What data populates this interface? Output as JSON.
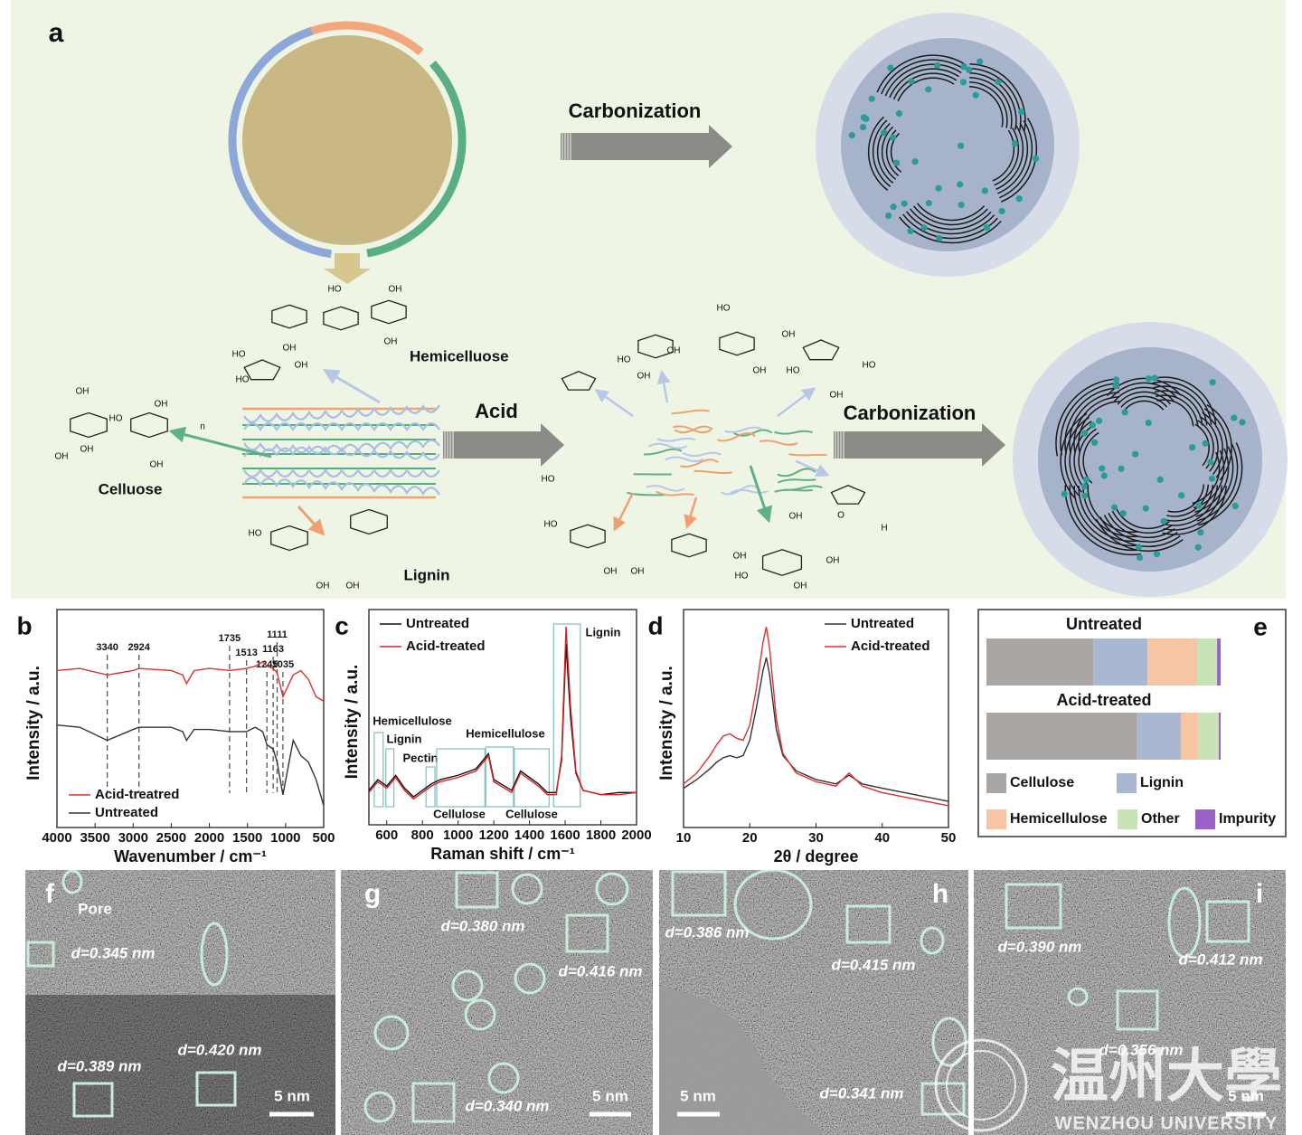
{
  "figure": {
    "a": {
      "panel": "a",
      "carbonization_top": "Carbonization",
      "acid": "Acid",
      "carbonization_bottom": "Carbonization",
      "hemicellulose": "Hemicelluose",
      "cellulose": "Celluose",
      "lignin": "Lignin",
      "atom_labels": [
        "OH",
        "HO",
        "OH",
        "OH",
        "OH",
        "OH",
        "n",
        "OH",
        "HO",
        "OH",
        "OH",
        "HO",
        "HO",
        "OH",
        "HO",
        "OH",
        "OH",
        "HO",
        "HO",
        "OH",
        "OH",
        "HO",
        "OH",
        "HO",
        "HO",
        "OH",
        "OH",
        "OH",
        "O",
        "H",
        "OH",
        "OH",
        "HO",
        "OH",
        "OH",
        "HO",
        "OH"
      ]
    },
    "tem": [
      {
        "panel": "f",
        "labels": [
          "Pore",
          "d=0.345 nm",
          "d=0.389 nm",
          "d=0.420 nm"
        ],
        "scale": "5 nm"
      },
      {
        "panel": "g",
        "labels": [
          "d=0.380 nm",
          "d=0.416 nm",
          "d=0.340 nm"
        ],
        "scale": "5 nm"
      },
      {
        "panel": "h",
        "labels": [
          "d=0.386 nm",
          "d=0.415 nm",
          "d=0.341 nm"
        ],
        "scale": "5 nm"
      },
      {
        "panel": "i",
        "labels": [
          "d=0.390 nm",
          "d=0.412 nm",
          "d=0.356 nm"
        ],
        "scale": "5 nm"
      }
    ],
    "watermark": {
      "chinese": "温州大學",
      "english": "WENZHOU UNIVERSITY"
    }
  },
  "chart_data": [
    {
      "type": "line",
      "panel": "b",
      "xlabel": "Wavenumber / cm⁻¹",
      "ylabel": "Intensity / a.u.",
      "x": [
        4000,
        3700,
        3340,
        3000,
        2924,
        2500,
        2350,
        2300,
        2200,
        2000,
        1735,
        1513,
        1400,
        1300,
        1245,
        1163,
        1111,
        1035,
        900,
        800,
        700,
        600,
        500
      ],
      "series": [
        {
          "name": "Acid-treatred",
          "color": "#e03030",
          "values": [
            0.72,
            0.73,
            0.7,
            0.72,
            0.73,
            0.72,
            0.7,
            0.66,
            0.72,
            0.73,
            0.72,
            0.73,
            0.74,
            0.76,
            0.74,
            0.73,
            0.71,
            0.6,
            0.7,
            0.72,
            0.68,
            0.6,
            0.58
          ]
        },
        {
          "name": "Untreated",
          "color": "#333333",
          "values": [
            0.47,
            0.46,
            0.4,
            0.45,
            0.46,
            0.46,
            0.44,
            0.4,
            0.45,
            0.45,
            0.44,
            0.44,
            0.46,
            0.44,
            0.38,
            0.36,
            0.3,
            0.15,
            0.4,
            0.33,
            0.3,
            0.22,
            0.1
          ]
        }
      ],
      "peaks": [
        3340,
        2924,
        1735,
        1513,
        1245,
        1163,
        1111,
        1035
      ],
      "xlim": [
        4000,
        500
      ],
      "xticks": [
        4000,
        3500,
        3000,
        2500,
        2000,
        1500,
        1000,
        500
      ],
      "ylim": [
        0,
        1
      ]
    },
    {
      "type": "line",
      "panel": "c",
      "xlabel": "Raman shift / cm⁻¹",
      "ylabel": "Intensity / a.u.",
      "x": [
        500,
        550,
        600,
        650,
        700,
        750,
        800,
        850,
        900,
        1000,
        1100,
        1170,
        1200,
        1300,
        1350,
        1450,
        1500,
        1550,
        1580,
        1605,
        1630,
        1660,
        1700,
        1800,
        1900,
        2000
      ],
      "series": [
        {
          "name": "Untreated",
          "color": "#111111",
          "values": [
            0.16,
            0.21,
            0.18,
            0.23,
            0.17,
            0.13,
            0.16,
            0.19,
            0.21,
            0.23,
            0.26,
            0.33,
            0.21,
            0.16,
            0.25,
            0.19,
            0.15,
            0.15,
            0.3,
            0.84,
            0.5,
            0.24,
            0.16,
            0.14,
            0.15,
            0.15
          ]
        },
        {
          "name": "Acid-treated",
          "color": "#e02020",
          "values": [
            0.15,
            0.2,
            0.17,
            0.22,
            0.16,
            0.12,
            0.15,
            0.18,
            0.2,
            0.22,
            0.25,
            0.32,
            0.2,
            0.15,
            0.24,
            0.18,
            0.14,
            0.14,
            0.32,
            0.92,
            0.55,
            0.25,
            0.16,
            0.14,
            0.14,
            0.15
          ]
        }
      ],
      "regions": [
        {
          "label": "Hemicellulose",
          "range": [
            530,
            580
          ]
        },
        {
          "label": "Lignin",
          "range": [
            595,
            640
          ]
        },
        {
          "label": "Pectin",
          "range": [
            820,
            870
          ]
        },
        {
          "label": "Cellulose",
          "range": [
            880,
            1150
          ]
        },
        {
          "label": "Hemicellulose",
          "range": [
            1155,
            1310
          ]
        },
        {
          "label": "Cellulose",
          "range": [
            1315,
            1510
          ]
        },
        {
          "label": "Lignin",
          "range": [
            1535,
            1685
          ]
        }
      ],
      "xlim": [
        500,
        2000
      ],
      "xticks": [
        600,
        800,
        1000,
        1200,
        1400,
        1600,
        1800,
        2000
      ],
      "ylim": [
        0,
        1
      ]
    },
    {
      "type": "line",
      "panel": "d",
      "xlabel": "2θ / degree",
      "ylabel": "Intensity / a.u.",
      "x": [
        10,
        12,
        14,
        15,
        16,
        17,
        18,
        19,
        20,
        21,
        22,
        22.5,
        23,
        24,
        25,
        27,
        30,
        33,
        35,
        37,
        40,
        45,
        50
      ],
      "series": [
        {
          "name": "Untreated",
          "color": "#333333",
          "values": [
            0.18,
            0.22,
            0.27,
            0.3,
            0.32,
            0.33,
            0.32,
            0.33,
            0.4,
            0.55,
            0.72,
            0.78,
            0.7,
            0.45,
            0.33,
            0.26,
            0.22,
            0.2,
            0.24,
            0.2,
            0.18,
            0.15,
            0.12
          ]
        },
        {
          "name": "Acid-treated",
          "color": "#e03030",
          "values": [
            0.2,
            0.25,
            0.33,
            0.38,
            0.42,
            0.43,
            0.41,
            0.4,
            0.47,
            0.64,
            0.85,
            0.92,
            0.82,
            0.5,
            0.34,
            0.25,
            0.21,
            0.19,
            0.25,
            0.19,
            0.16,
            0.13,
            0.1
          ]
        }
      ],
      "xlim": [
        10,
        50
      ],
      "xticks": [
        10,
        20,
        30,
        40,
        50
      ],
      "ylim": [
        0,
        1
      ]
    },
    {
      "type": "stacked_bar",
      "panel": "e",
      "categories": [
        "Untreated",
        "Acid-treated"
      ],
      "series": [
        {
          "name": "Cellulose",
          "color": "#a9a6a4",
          "values": [
            45.6,
            64.1
          ]
        },
        {
          "name": "Lignin",
          "color": "#a9b7d0",
          "values": [
            23.2,
            18.9
          ]
        },
        {
          "name": "Hemicellulose",
          "color": "#f6c6a4",
          "values": [
            21.2,
            7.3
          ]
        },
        {
          "name": "Other",
          "color": "#c8e3b6",
          "values": [
            8.5,
            8.9
          ]
        },
        {
          "name": "Impurity",
          "color": "#9b60c4",
          "values": [
            1.5,
            0.8
          ]
        }
      ]
    }
  ]
}
